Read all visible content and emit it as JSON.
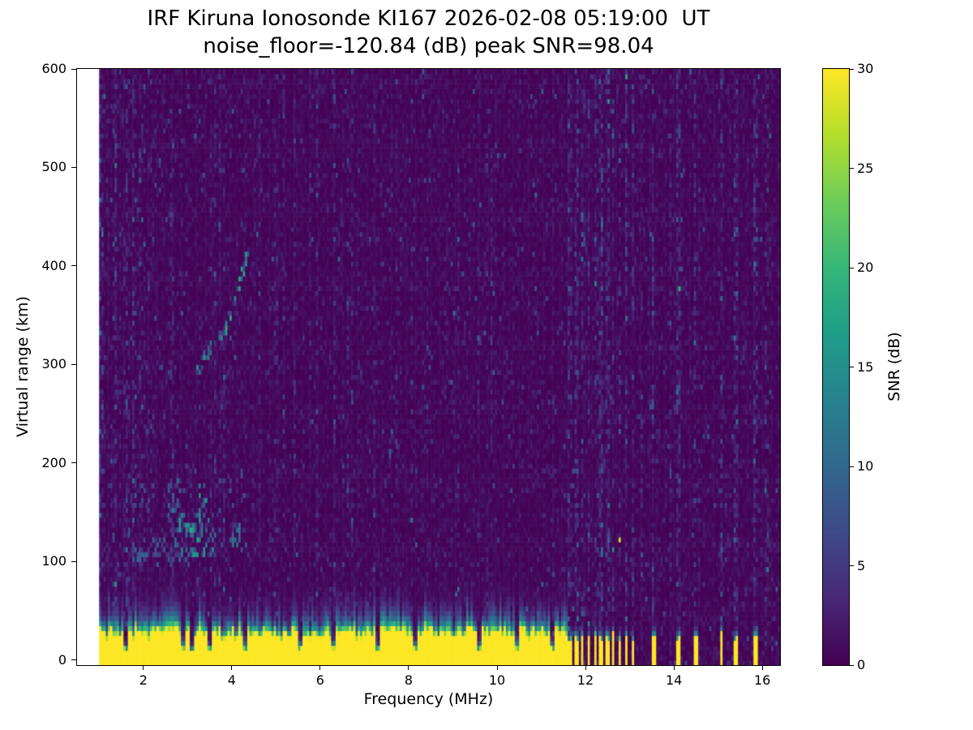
{
  "chart_data": {
    "type": "heatmap",
    "title": "IRF Kiruna Ionosonde KI167 2026-02-08 05:19:00  UT",
    "subtitle": "noise_floor=-120.84 (dB) peak SNR=98.04",
    "xlabel": "Frequency (MHz)",
    "ylabel": "Virtual range (km)",
    "colorbar_label": "SNR (dB)",
    "colormap": "viridis",
    "xlim": [
      0.5,
      16.4
    ],
    "ylim": [
      -5,
      600
    ],
    "clim": [
      0,
      30
    ],
    "xticks": [
      2,
      4,
      6,
      8,
      10,
      12,
      14,
      16
    ],
    "yticks": [
      0,
      100,
      200,
      300,
      400,
      500,
      600
    ],
    "cticks": [
      0,
      5,
      10,
      15,
      20,
      25,
      30
    ],
    "data_freq_range": [
      1.0,
      16.4
    ],
    "freq_bin_mhz": 0.05,
    "range_bin_km": 5,
    "noise": {
      "seed": 42,
      "base_mean": 0.75,
      "speckle_prob": 0.012,
      "speckle_max": 8
    },
    "ground_band": {
      "f_end": 11.62,
      "height_km": 27,
      "height_jitter_km": 12,
      "fuzz_decay_km": 8,
      "snr_db": 30,
      "notches": [
        1.58,
        2.92,
        3.1,
        3.52,
        4.32,
        5.55,
        6.3,
        7.32,
        8.15,
        9.62,
        10.45,
        11.25
      ]
    },
    "rfi_bars": [
      {
        "f": 11.66,
        "w": 0.07
      },
      {
        "f": 11.8,
        "w": 0.07
      },
      {
        "f": 11.94,
        "w": 0.07
      },
      {
        "f": 12.08,
        "w": 0.07
      },
      {
        "f": 12.22,
        "w": 0.07
      },
      {
        "f": 12.36,
        "w": 0.07
      },
      {
        "f": 12.5,
        "w": 0.07
      },
      {
        "f": 12.64,
        "w": 0.07
      },
      {
        "f": 12.78,
        "w": 0.07
      },
      {
        "f": 12.93,
        "w": 0.07
      },
      {
        "f": 13.07,
        "w": 0.07
      },
      {
        "f": 13.54,
        "w": 0.08
      },
      {
        "f": 14.11,
        "w": 0.08
      },
      {
        "f": 14.49,
        "w": 0.08
      },
      {
        "f": 15.08,
        "w": 0.08
      },
      {
        "f": 15.41,
        "w": 0.08
      },
      {
        "f": 15.85,
        "w": 0.08
      }
    ],
    "rfi_stripes": [
      {
        "f": 1.05,
        "w": 0.1,
        "s": 1.4
      },
      {
        "f": 1.35,
        "w": 0.06,
        "s": 0.9
      },
      {
        "f": 2.65,
        "w": 0.06,
        "s": 0.9
      },
      {
        "f": 11.66,
        "w": 0.07,
        "s": 1.5
      },
      {
        "f": 11.8,
        "w": 0.07,
        "s": 1.8
      },
      {
        "f": 11.94,
        "w": 0.07,
        "s": 1.5
      },
      {
        "f": 12.08,
        "w": 0.07,
        "s": 2.0
      },
      {
        "f": 12.22,
        "w": 0.07,
        "s": 1.5
      },
      {
        "f": 12.36,
        "w": 0.07,
        "s": 1.9
      },
      {
        "f": 12.5,
        "w": 0.07,
        "s": 1.6
      },
      {
        "f": 12.64,
        "w": 0.07,
        "s": 2.0
      },
      {
        "f": 12.78,
        "w": 0.07,
        "s": 1.6
      },
      {
        "f": 12.93,
        "w": 0.07,
        "s": 1.9
      },
      {
        "f": 13.07,
        "w": 0.07,
        "s": 1.6
      },
      {
        "f": 13.54,
        "w": 0.07,
        "s": 2.2
      },
      {
        "f": 14.11,
        "w": 0.07,
        "s": 1.9
      },
      {
        "f": 14.49,
        "w": 0.07,
        "s": 2.1
      },
      {
        "f": 15.08,
        "w": 0.07,
        "s": 1.9
      },
      {
        "f": 15.41,
        "w": 0.07,
        "s": 1.8
      },
      {
        "f": 15.85,
        "w": 0.07,
        "s": 2.0
      },
      {
        "f": 16.1,
        "w": 0.06,
        "s": 1.3
      }
    ],
    "echo_blobs": [
      {
        "f": [
          1.7,
          2.15
        ],
        "r": [
          100,
          116
        ],
        "p": 0.5,
        "smax": 8
      },
      {
        "f": [
          2.15,
          2.55
        ],
        "r": [
          102,
          126
        ],
        "p": 0.3,
        "smax": 8
      },
      {
        "f": [
          2.55,
          2.78
        ],
        "r": [
          100,
          185
        ],
        "p": 0.28,
        "smax": 9
      },
      {
        "f": [
          2.78,
          3.02
        ],
        "r": [
          102,
          150
        ],
        "p": 0.5,
        "smax": 13
      },
      {
        "f": [
          3.02,
          3.27
        ],
        "r": [
          103,
          140
        ],
        "p": 0.6,
        "smax": 18
      },
      {
        "f": [
          3.27,
          3.5
        ],
        "r": [
          104,
          178
        ],
        "p": 0.42,
        "smax": 14
      },
      {
        "f": [
          3.5,
          3.66
        ],
        "r": [
          106,
          132
        ],
        "p": 0.5,
        "smax": 12
      },
      {
        "f": [
          3.98,
          4.18
        ],
        "r": [
          112,
          140
        ],
        "p": 0.45,
        "smax": 12
      },
      {
        "f": [
          1.6,
          4.45
        ],
        "r": [
          95,
          195
        ],
        "p": 0.05,
        "smax": 6
      },
      {
        "f": [
          7.5,
          7.65
        ],
        "r": [
          188,
          238
        ],
        "p": 0.3,
        "smax": 7
      }
    ],
    "trace_segments": [
      {
        "f": [
          2.3,
          2.68
        ],
        "r": [
          304,
          290
        ],
        "w": 6,
        "p": 0.4,
        "smax": 9
      },
      {
        "f": [
          3.18,
          3.55
        ],
        "r": [
          292,
          318
        ],
        "w": 7,
        "p": 0.6,
        "smax": 13
      },
      {
        "f": [
          3.55,
          3.82
        ],
        "r": [
          318,
          332
        ],
        "w": 6,
        "p": 0.3,
        "smax": 9
      },
      {
        "f": [
          3.82,
          4.1
        ],
        "r": [
          332,
          370
        ],
        "w": 7,
        "p": 0.65,
        "smax": 15
      },
      {
        "f": [
          4.08,
          4.34
        ],
        "r": [
          368,
          410
        ],
        "w": 8,
        "p": 0.68,
        "smax": 16
      }
    ]
  }
}
